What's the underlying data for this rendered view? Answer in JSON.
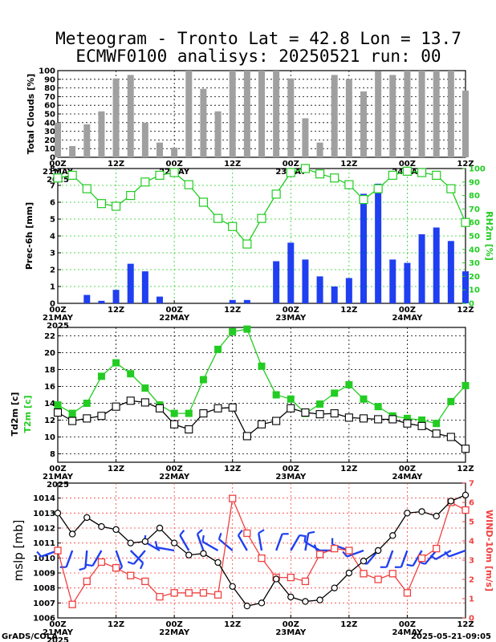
{
  "title_line1": "Meteogram - Tronto Lat = 42.8 Lon = 13.7",
  "title_line2": "ECMWF0100 analisys: 20250521 run: 00",
  "footer_left": "GrADS/COLA",
  "footer_right": "2025-05-21-09:05",
  "colors": {
    "bars_clouds": "#a0a0a0",
    "bars_prec": "#1f3ff0",
    "green": "#22cc22",
    "red": "#f04040",
    "black": "#000000",
    "barb": "#2040f0"
  },
  "time_axis": {
    "hours": [
      0,
      12,
      24,
      36,
      48,
      60,
      72,
      84
    ],
    "tick_labels": [
      "00Z",
      "12Z",
      "00Z",
      "12Z",
      "00Z",
      "12Z",
      "00Z",
      "12Z"
    ],
    "date_labels": [
      {
        "hour": 0,
        "text": "21MAY"
      },
      {
        "hour": 24,
        "text": "22MAY"
      },
      {
        "hour": 48,
        "text": "23MAY"
      },
      {
        "hour": 72,
        "text": "24MAY"
      }
    ],
    "year_label": "2025"
  },
  "chart_data": [
    {
      "type": "bar",
      "name": "clouds",
      "ylabel": "Total Clouds [%]",
      "ylim": [
        0,
        100
      ],
      "yticks": [
        0,
        10,
        20,
        30,
        40,
        50,
        60,
        70,
        80,
        90,
        100
      ],
      "x_hours": [
        0,
        3,
        6,
        9,
        12,
        15,
        18,
        21,
        24,
        27,
        30,
        33,
        36,
        39,
        42,
        45,
        48,
        51,
        54,
        57,
        60,
        63,
        66,
        69,
        72,
        75,
        78,
        81,
        84
      ],
      "values": [
        40,
        13,
        38,
        53,
        91,
        95,
        40,
        17,
        11,
        100,
        79,
        53,
        100,
        100,
        100,
        100,
        91,
        45,
        17,
        95,
        90,
        76,
        99,
        95,
        100,
        100,
        100,
        100,
        77
      ]
    },
    {
      "type": "bar+line",
      "name": "prec",
      "ylabel": "Prec-6h [mm]",
      "ylim": [
        0,
        8
      ],
      "yticks": [
        0,
        1,
        2,
        3,
        4,
        5,
        6,
        7,
        8
      ],
      "bar_series": {
        "x_hours": [
          6,
          9,
          12,
          15,
          18,
          21,
          36,
          39,
          45,
          48,
          51,
          54,
          57,
          60,
          63,
          66,
          69,
          72,
          75,
          78,
          81,
          84
        ],
        "values": [
          0.5,
          0.15,
          0.8,
          2.35,
          1.9,
          0.4,
          0.2,
          0.2,
          2.5,
          3.6,
          2.6,
          1.6,
          1.0,
          1.5,
          6.5,
          7.1,
          2.6,
          2.4,
          4.1,
          4.5,
          3.7,
          1.9
        ]
      },
      "y2label": "RH2m [%]",
      "y2lim": [
        0,
        100
      ],
      "y2ticks": [
        0,
        10,
        20,
        30,
        40,
        50,
        60,
        70,
        80,
        90,
        100
      ],
      "line_series": {
        "x_hours": [
          0,
          3,
          6,
          9,
          12,
          15,
          18,
          21,
          24,
          27,
          30,
          33,
          36,
          39,
          42,
          45,
          48,
          51,
          54,
          57,
          60,
          63,
          66,
          69,
          72,
          75,
          78,
          81,
          84
        ],
        "values": [
          93,
          95,
          85,
          74,
          72,
          80,
          90,
          95,
          97,
          88,
          75,
          63,
          57,
          44,
          63,
          81,
          97,
          100,
          96,
          93,
          88,
          77,
          85,
          95,
          98,
          97,
          95,
          85,
          60
        ]
      }
    },
    {
      "type": "line",
      "name": "temp",
      "ylabel_black": "Td2m [c]",
      "ylabel_green": "T2m [c]",
      "ylim": [
        7,
        23
      ],
      "yticks": [
        8,
        10,
        12,
        14,
        16,
        18,
        20,
        22
      ],
      "series": [
        {
          "x_hours": [
            0,
            3,
            6,
            9,
            12,
            15,
            18,
            21,
            24,
            27,
            30,
            33,
            36,
            39,
            42,
            45,
            48,
            51,
            54,
            57,
            60,
            63,
            66,
            69,
            72,
            75,
            78,
            81,
            84
          ],
          "values": [
            13.8,
            12.8,
            14.0,
            17.2,
            18.8,
            17.5,
            15.8,
            13.8,
            12.8,
            12.8,
            16.8,
            20.4,
            22.5,
            22.8,
            18.4,
            15.0,
            14.5,
            12.8,
            13.9,
            15.2,
            16.2,
            14.5,
            13.6,
            12.5,
            12.2,
            12.0,
            11.6,
            14.2,
            16.1
          ]
        },
        {
          "x_hours": [
            0,
            3,
            6,
            9,
            12,
            15,
            18,
            21,
            24,
            27,
            30,
            33,
            36,
            39,
            42,
            45,
            48,
            51,
            54,
            57,
            60,
            63,
            66,
            69,
            72,
            75,
            78,
            81,
            84
          ],
          "values": [
            12.9,
            11.9,
            12.2,
            12.5,
            13.6,
            14.3,
            14.1,
            13.4,
            11.5,
            10.9,
            12.8,
            13.4,
            13.5,
            10.1,
            11.5,
            11.9,
            13.4,
            12.9,
            12.7,
            12.8,
            12.3,
            12.2,
            12.1,
            12.1,
            11.6,
            11.3,
            10.4,
            10.0,
            8.6
          ]
        }
      ]
    },
    {
      "type": "line",
      "name": "mslp",
      "ylabel": "mslp [mb]",
      "ylim": [
        1006,
        1015
      ],
      "yticks": [
        1006,
        1007,
        1008,
        1009,
        1010,
        1011,
        1012,
        1013,
        1014
      ],
      "y2label": "WIND-10m [m/s]",
      "y2lim": [
        0,
        7
      ],
      "y2ticks": [
        0,
        1,
        2,
        3,
        4,
        5,
        6,
        7
      ],
      "x_hours": [
        0,
        3,
        6,
        9,
        12,
        15,
        18,
        21,
        24,
        27,
        30,
        33,
        36,
        39,
        42,
        45,
        48,
        51,
        54,
        57,
        60,
        63,
        66,
        69,
        72,
        75,
        78,
        81,
        84
      ],
      "mslp_values": [
        1013.0,
        1011.6,
        1012.7,
        1012.1,
        1011.9,
        1011.0,
        1011.1,
        1012.0,
        1011.0,
        1010.2,
        1010.3,
        1009.7,
        1008.1,
        1006.8,
        1007.0,
        1008.6,
        1007.4,
        1007.1,
        1007.2,
        1008.0,
        1009.0,
        1009.8,
        1010.5,
        1011.5,
        1013.0,
        1013.1,
        1012.8,
        1013.8,
        1014.2
      ],
      "wind_values": [
        3.5,
        0.7,
        1.9,
        2.9,
        2.6,
        2.2,
        1.9,
        1.1,
        1.3,
        1.3,
        1.3,
        1.2,
        6.2,
        4.4,
        3.1,
        2.1,
        2.1,
        1.9,
        3.3,
        3.6,
        3.5,
        2.3,
        2.0,
        2.3,
        1.3,
        3.1,
        3.6,
        6.0,
        5.6
      ],
      "barb_dir_deg": [
        250,
        200,
        185,
        210,
        160,
        135,
        220,
        300,
        280,
        330,
        340,
        300,
        310,
        330,
        350,
        20,
        30,
        10,
        300,
        270,
        290,
        250,
        220,
        200,
        200,
        210,
        220,
        240,
        250
      ]
    }
  ]
}
